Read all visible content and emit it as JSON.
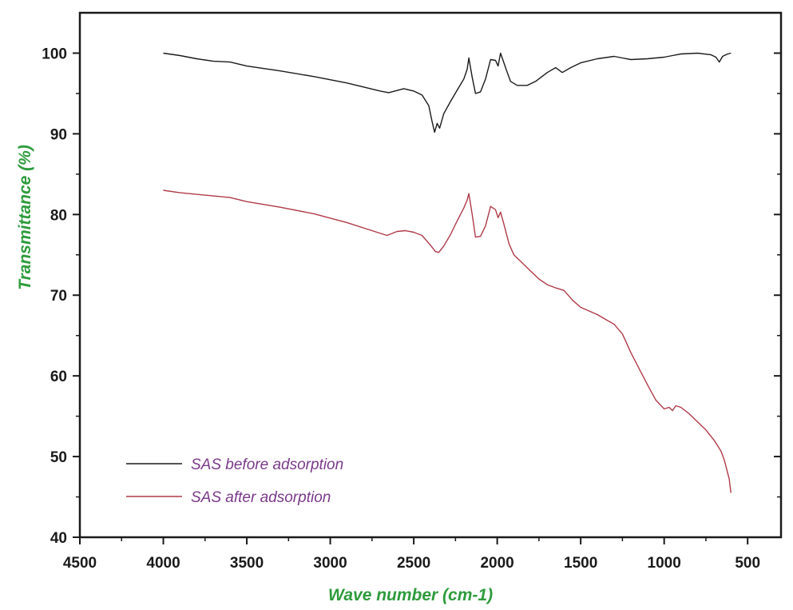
{
  "chart_data": {
    "type": "line",
    "xlabel": "Wave number (cm-1)",
    "ylabel": "Transmittance (%)",
    "xlim": [
      4500,
      300
    ],
    "ylim": [
      40,
      105
    ],
    "x_ticks": [
      4500,
      4000,
      3500,
      3000,
      2500,
      2000,
      1500,
      1000,
      500
    ],
    "y_ticks": [
      40,
      50,
      60,
      70,
      80,
      90,
      100
    ],
    "x_tick_labels": [
      "4500",
      "4000",
      "3500",
      "3000",
      "2500",
      "2000",
      "1500",
      "1000",
      "500"
    ],
    "y_tick_labels": [
      "40",
      "50",
      "60",
      "70",
      "80",
      "90",
      "100"
    ],
    "x_reversed": true,
    "grid": false,
    "legend_position": "bottom-left",
    "series": [
      {
        "name": "SAS before adsorption",
        "color": "#1a1a1a",
        "points": [
          [
            4000,
            100.0
          ],
          [
            3900,
            99.7
          ],
          [
            3800,
            99.3
          ],
          [
            3700,
            99.0
          ],
          [
            3600,
            98.9
          ],
          [
            3500,
            98.4
          ],
          [
            3300,
            97.8
          ],
          [
            3100,
            97.1
          ],
          [
            2900,
            96.3
          ],
          [
            2700,
            95.3
          ],
          [
            2650,
            95.1
          ],
          [
            2560,
            95.6
          ],
          [
            2500,
            95.3
          ],
          [
            2450,
            94.8
          ],
          [
            2410,
            93.5
          ],
          [
            2390,
            91.5
          ],
          [
            2375,
            90.2
          ],
          [
            2360,
            91.3
          ],
          [
            2345,
            90.7
          ],
          [
            2320,
            92.5
          ],
          [
            2280,
            94.0
          ],
          [
            2240,
            95.4
          ],
          [
            2200,
            96.8
          ],
          [
            2180,
            98.0
          ],
          [
            2170,
            99.4
          ],
          [
            2150,
            97.0
          ],
          [
            2130,
            95.0
          ],
          [
            2100,
            95.2
          ],
          [
            2070,
            96.8
          ],
          [
            2040,
            99.2
          ],
          [
            2010,
            99.1
          ],
          [
            1995,
            98.4
          ],
          [
            1980,
            100.0
          ],
          [
            1960,
            98.8
          ],
          [
            1940,
            97.6
          ],
          [
            1920,
            96.5
          ],
          [
            1880,
            96.0
          ],
          [
            1820,
            96.0
          ],
          [
            1770,
            96.5
          ],
          [
            1700,
            97.6
          ],
          [
            1650,
            98.2
          ],
          [
            1610,
            97.6
          ],
          [
            1560,
            98.2
          ],
          [
            1500,
            98.8
          ],
          [
            1400,
            99.3
          ],
          [
            1300,
            99.6
          ],
          [
            1250,
            99.4
          ],
          [
            1200,
            99.2
          ],
          [
            1100,
            99.3
          ],
          [
            1000,
            99.5
          ],
          [
            950,
            99.7
          ],
          [
            900,
            99.9
          ],
          [
            800,
            100.0
          ],
          [
            720,
            99.8
          ],
          [
            690,
            99.5
          ],
          [
            670,
            98.9
          ],
          [
            650,
            99.6
          ],
          [
            620,
            99.9
          ],
          [
            600,
            100.0
          ]
        ]
      },
      {
        "name": "SAS after adsorption",
        "color": "#b03a48",
        "points": [
          [
            4000,
            83.0
          ],
          [
            3900,
            82.7
          ],
          [
            3800,
            82.5
          ],
          [
            3700,
            82.3
          ],
          [
            3600,
            82.1
          ],
          [
            3500,
            81.6
          ],
          [
            3300,
            80.9
          ],
          [
            3100,
            80.1
          ],
          [
            2900,
            79.0
          ],
          [
            2750,
            78.0
          ],
          [
            2660,
            77.4
          ],
          [
            2600,
            77.9
          ],
          [
            2550,
            78.0
          ],
          [
            2500,
            77.8
          ],
          [
            2450,
            77.4
          ],
          [
            2400,
            76.2
          ],
          [
            2370,
            75.4
          ],
          [
            2350,
            75.3
          ],
          [
            2320,
            76.1
          ],
          [
            2280,
            77.5
          ],
          [
            2240,
            79.2
          ],
          [
            2200,
            80.8
          ],
          [
            2180,
            81.8
          ],
          [
            2170,
            82.6
          ],
          [
            2150,
            80.0
          ],
          [
            2130,
            77.2
          ],
          [
            2100,
            77.3
          ],
          [
            2070,
            78.6
          ],
          [
            2040,
            81.0
          ],
          [
            2010,
            80.6
          ],
          [
            1995,
            79.6
          ],
          [
            1980,
            80.3
          ],
          [
            1960,
            78.8
          ],
          [
            1930,
            76.4
          ],
          [
            1900,
            75.0
          ],
          [
            1850,
            74.0
          ],
          [
            1800,
            73.0
          ],
          [
            1750,
            72.0
          ],
          [
            1700,
            71.3
          ],
          [
            1650,
            70.9
          ],
          [
            1600,
            70.6
          ],
          [
            1550,
            69.4
          ],
          [
            1500,
            68.5
          ],
          [
            1400,
            67.6
          ],
          [
            1300,
            66.4
          ],
          [
            1250,
            65.2
          ],
          [
            1200,
            62.9
          ],
          [
            1150,
            60.9
          ],
          [
            1100,
            58.9
          ],
          [
            1050,
            57.0
          ],
          [
            1000,
            55.9
          ],
          [
            970,
            56.1
          ],
          [
            950,
            55.7
          ],
          [
            930,
            56.3
          ],
          [
            900,
            56.1
          ],
          [
            850,
            55.3
          ],
          [
            800,
            54.3
          ],
          [
            750,
            53.3
          ],
          [
            700,
            52.0
          ],
          [
            660,
            50.7
          ],
          [
            640,
            49.6
          ],
          [
            620,
            48.0
          ],
          [
            610,
            47.2
          ],
          [
            605,
            46.3
          ],
          [
            600,
            45.5
          ]
        ]
      }
    ]
  }
}
